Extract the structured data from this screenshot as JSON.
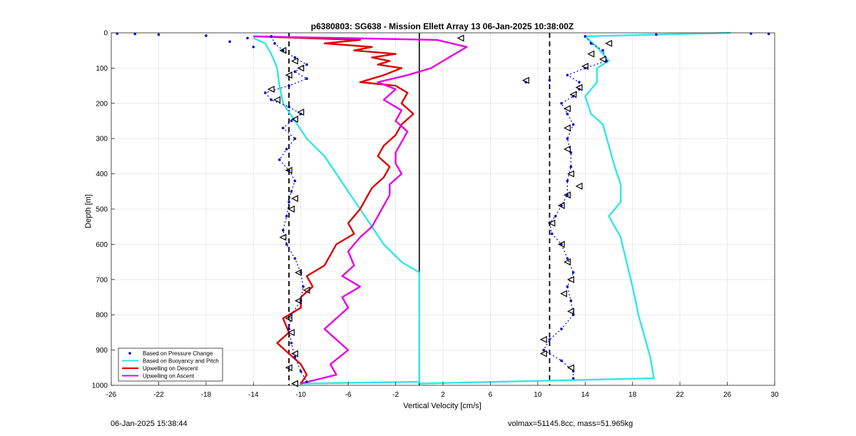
{
  "footer": {
    "timestamp": "06-Jan-2025 15:38:44",
    "mass_info": "volmax=51145.8cc, mass=51.965kg"
  },
  "colors": {
    "pressure": "#0000cc",
    "buoyancy": "#33e6e6",
    "descent": "#dd0000",
    "ascent": "#e600e6",
    "marker": "#000000"
  },
  "chart_data": {
    "type": "line",
    "title": "p6380803: SG638 - Mission Ellett Array 13 06-Jan-2025 10:38:00Z",
    "xlabel": "Vertical Velocity [cm/s]",
    "ylabel": "Depth [m]",
    "xlim": [
      -26,
      30
    ],
    "ylim": [
      0,
      1000
    ],
    "y_reversed": true,
    "grid": true,
    "xticks": [
      -26,
      -22,
      -18,
      -14,
      -10,
      -6,
      -2,
      2,
      6,
      10,
      14,
      18,
      22,
      26,
      30
    ],
    "yticks": [
      0,
      100,
      200,
      300,
      400,
      500,
      600,
      700,
      800,
      900,
      1000
    ],
    "legend_position": "bottom-left",
    "reference_lines": [
      {
        "x": -11,
        "style": "dashed"
      },
      {
        "x": 0,
        "style": "solid"
      },
      {
        "x": 11,
        "style": "dashed"
      }
    ],
    "series": [
      {
        "name": "Based on Pressure Change",
        "kind": "scatter",
        "branches": [
          [
            [
              -12.5,
              10
            ],
            [
              -12.2,
              30
            ],
            [
              -11.5,
              50
            ],
            [
              -10.5,
              70
            ],
            [
              -9.5,
              90
            ],
            [
              -10.5,
              110
            ],
            [
              -9.5,
              130
            ],
            [
              -11,
              150
            ],
            [
              -13,
              170
            ],
            [
              -12.5,
              190
            ],
            [
              -11,
              210
            ],
            [
              -10,
              230
            ],
            [
              -10.8,
              250
            ],
            [
              -11.5,
              270
            ],
            [
              -10.5,
              300
            ],
            [
              -11.2,
              330
            ],
            [
              -11.8,
              360
            ],
            [
              -11,
              390
            ],
            [
              -10.5,
              420
            ],
            [
              -10.8,
              450
            ],
            [
              -11,
              480
            ],
            [
              -11.2,
              520
            ],
            [
              -11.5,
              560
            ],
            [
              -11.2,
              600
            ],
            [
              -10.5,
              640
            ],
            [
              -10,
              680
            ],
            [
              -9.8,
              720
            ],
            [
              -10,
              760
            ],
            [
              -10.8,
              800
            ],
            [
              -11,
              840
            ],
            [
              -10.8,
              880
            ],
            [
              -10.5,
              920
            ],
            [
              -10,
              960
            ],
            [
              -9.5,
              990
            ]
          ],
          [
            [
              14,
              10
            ],
            [
              14.5,
              30
            ],
            [
              15.5,
              50
            ],
            [
              15.8,
              80
            ],
            [
              14,
              100
            ],
            [
              12.5,
              120
            ],
            [
              13.5,
              140
            ],
            [
              13.5,
              160
            ],
            [
              13,
              180
            ],
            [
              12,
              200
            ],
            [
              12.5,
              230
            ],
            [
              13,
              260
            ],
            [
              12.5,
              300
            ],
            [
              12.8,
              340
            ],
            [
              12.8,
              380
            ],
            [
              12.5,
              420
            ],
            [
              12.5,
              460
            ],
            [
              12,
              490
            ],
            [
              11.5,
              520
            ],
            [
              11,
              540
            ],
            [
              11.2,
              570
            ],
            [
              12,
              600
            ],
            [
              12.5,
              640
            ],
            [
              13,
              680
            ],
            [
              12.5,
              720
            ],
            [
              12.8,
              760
            ],
            [
              13,
              800
            ],
            [
              12,
              840
            ],
            [
              11,
              870
            ],
            [
              10.5,
              900
            ],
            [
              12,
              930
            ],
            [
              13,
              960
            ],
            [
              13,
              980
            ]
          ]
        ],
        "outliers": [
          [
            -25.5,
            2
          ],
          [
            -22,
            5
          ],
          [
            -18,
            8
          ],
          [
            -14.5,
            15
          ],
          [
            -16,
            25
          ],
          [
            -14,
            40
          ],
          [
            9,
            140
          ],
          [
            11,
            135
          ],
          [
            28,
            2
          ],
          [
            29.5,
            3
          ],
          [
            20,
            5
          ],
          [
            -24,
            3
          ]
        ]
      },
      {
        "name": "Based on Buoyancy and Pitch",
        "kind": "line",
        "branches": [
          [
            [
              -14,
              15
            ],
            [
              -13,
              30
            ],
            [
              -12.5,
              60
            ],
            [
              -12,
              100
            ],
            [
              -11.8,
              150
            ],
            [
              -11.5,
              200
            ],
            [
              -10.5,
              250
            ],
            [
              -9.5,
              300
            ],
            [
              -8,
              350
            ],
            [
              -7,
              400
            ],
            [
              -6,
              450
            ],
            [
              -5,
              500
            ],
            [
              -4,
              550
            ],
            [
              -3,
              600
            ],
            [
              -1.5,
              650
            ],
            [
              0,
              680
            ],
            [
              0,
              700
            ],
            [
              0,
              800
            ],
            [
              0,
              900
            ],
            [
              0,
              990
            ],
            [
              -10,
              995
            ]
          ],
          [
            [
              26.3,
              0
            ],
            [
              14,
              10
            ],
            [
              15,
              40
            ],
            [
              16,
              80
            ],
            [
              15,
              100
            ],
            [
              15,
              140
            ],
            [
              14,
              180
            ],
            [
              14.5,
              230
            ],
            [
              15.5,
              260
            ],
            [
              16,
              320
            ],
            [
              16.5,
              380
            ],
            [
              17,
              430
            ],
            [
              17,
              480
            ],
            [
              16,
              520
            ],
            [
              17,
              580
            ],
            [
              17.5,
              650
            ],
            [
              18,
              720
            ],
            [
              18.5,
              800
            ],
            [
              19,
              860
            ],
            [
              19.5,
              920
            ],
            [
              19.8,
              980
            ],
            [
              0,
              995
            ]
          ]
        ]
      },
      {
        "name": "Upwelling on Descent",
        "kind": "line",
        "branches": [
          [
            [
              -14,
              10
            ],
            [
              -5,
              20
            ],
            [
              -8,
              30
            ],
            [
              -4,
              40
            ],
            [
              -5.5,
              50
            ],
            [
              -2,
              60
            ],
            [
              -4,
              70
            ],
            [
              -2.5,
              80
            ],
            [
              -3.5,
              90
            ],
            [
              -1.5,
              100
            ],
            [
              -3,
              120
            ],
            [
              -5,
              140
            ],
            [
              -2,
              150
            ],
            [
              -1,
              170
            ],
            [
              -1.5,
              200
            ],
            [
              -0.5,
              230
            ],
            [
              -1.5,
              260
            ],
            [
              -2,
              290
            ],
            [
              -3,
              320
            ],
            [
              -3.5,
              350
            ],
            [
              -2.5,
              380
            ],
            [
              -3,
              410
            ],
            [
              -4,
              440
            ],
            [
              -4.5,
              470
            ],
            [
              -5,
              500
            ],
            [
              -6,
              540
            ],
            [
              -5.5,
              570
            ],
            [
              -7,
              600
            ],
            [
              -7.5,
              630
            ],
            [
              -8,
              660
            ],
            [
              -9.5,
              690
            ],
            [
              -9,
              720
            ],
            [
              -10,
              750
            ],
            [
              -10,
              780
            ],
            [
              -11.5,
              810
            ],
            [
              -11,
              850
            ],
            [
              -12,
              880
            ],
            [
              -11,
              910
            ],
            [
              -10,
              940
            ],
            [
              -9.5,
              970
            ],
            [
              -10,
              995
            ]
          ]
        ]
      },
      {
        "name": "Upwelling on Ascent",
        "kind": "line",
        "branches": [
          [
            [
              -10,
              995
            ],
            [
              -7,
              970
            ],
            [
              -7.5,
              940
            ],
            [
              -6,
              900
            ],
            [
              -7,
              870
            ],
            [
              -8,
              840
            ],
            [
              -7,
              810
            ],
            [
              -6,
              780
            ],
            [
              -6.5,
              750
            ],
            [
              -5,
              720
            ],
            [
              -6.5,
              690
            ],
            [
              -5.5,
              660
            ],
            [
              -6,
              620
            ],
            [
              -5,
              580
            ],
            [
              -4,
              550
            ],
            [
              -3.5,
              520
            ],
            [
              -3,
              490
            ],
            [
              -2.5,
              460
            ],
            [
              -2.5,
              430
            ],
            [
              -1.5,
              400
            ],
            [
              -2,
              370
            ],
            [
              -2,
              340
            ],
            [
              -1.5,
              310
            ],
            [
              -1,
              280
            ],
            [
              -2,
              250
            ],
            [
              -1.5,
              220
            ],
            [
              -3,
              190
            ],
            [
              -2,
              160
            ],
            [
              -3.5,
              140
            ],
            [
              -1,
              120
            ],
            [
              1,
              100
            ],
            [
              2,
              80
            ],
            [
              3,
              60
            ],
            [
              4,
              40
            ],
            [
              1.5,
              20
            ],
            [
              -14,
              10
            ]
          ]
        ]
      }
    ],
    "markers": [
      [
        -11.5,
        50
      ],
      [
        -10.5,
        80
      ],
      [
        -10,
        100
      ],
      [
        -11,
        120
      ],
      [
        -12.5,
        160
      ],
      [
        -12,
        190
      ],
      [
        -10,
        225
      ],
      [
        -10.5,
        245
      ],
      [
        -11,
        390
      ],
      [
        -10.5,
        470
      ],
      [
        -10.8,
        500
      ],
      [
        -11.5,
        580
      ],
      [
        -10.2,
        680
      ],
      [
        -9.5,
        730
      ],
      [
        -10.2,
        760
      ],
      [
        -11,
        810
      ],
      [
        -10.8,
        850
      ],
      [
        -10.5,
        910
      ],
      [
        -11,
        950
      ],
      [
        -10.5,
        995
      ],
      [
        3.5,
        15
      ],
      [
        14.5,
        60
      ],
      [
        15.5,
        75
      ],
      [
        14,
        95
      ],
      [
        13.5,
        155
      ],
      [
        13,
        175
      ],
      [
        12.5,
        215
      ],
      [
        12.5,
        270
      ],
      [
        12.5,
        330
      ],
      [
        12.8,
        400
      ],
      [
        13.5,
        435
      ],
      [
        12.5,
        460
      ],
      [
        12,
        490
      ],
      [
        11.2,
        540
      ],
      [
        12,
        600
      ],
      [
        12.5,
        650
      ],
      [
        12.8,
        700
      ],
      [
        12.2,
        740
      ],
      [
        12.8,
        790
      ],
      [
        10.5,
        870
      ],
      [
        10.5,
        910
      ],
      [
        12.8,
        950
      ],
      [
        16,
        30
      ],
      [
        9,
        135
      ]
    ]
  }
}
